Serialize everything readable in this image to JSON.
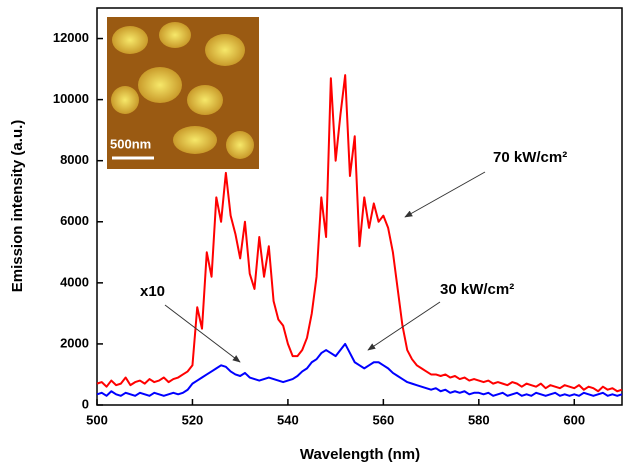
{
  "chart_data": {
    "type": "line",
    "x_label": "Wavelength (nm)",
    "y_label": "Emission intensity (a.u.)",
    "xlim": [
      500,
      610
    ],
    "ylim": [
      0,
      13000
    ],
    "xticks": [
      500,
      520,
      540,
      560,
      580,
      600
    ],
    "yticks": [
      0,
      2000,
      4000,
      6000,
      8000,
      10000,
      12000
    ],
    "x": [
      500,
      501,
      502,
      503,
      504,
      505,
      506,
      507,
      508,
      509,
      510,
      511,
      512,
      513,
      514,
      515,
      516,
      517,
      518,
      519,
      520,
      521,
      522,
      523,
      524,
      525,
      526,
      527,
      528,
      529,
      530,
      531,
      532,
      533,
      534,
      535,
      536,
      537,
      538,
      539,
      540,
      541,
      542,
      543,
      544,
      545,
      546,
      547,
      548,
      549,
      550,
      551,
      552,
      553,
      554,
      555,
      556,
      557,
      558,
      559,
      560,
      561,
      562,
      563,
      564,
      565,
      566,
      567,
      568,
      569,
      570,
      571,
      572,
      573,
      574,
      575,
      576,
      577,
      578,
      579,
      580,
      581,
      582,
      583,
      584,
      585,
      586,
      587,
      588,
      589,
      590,
      591,
      592,
      593,
      594,
      595,
      596,
      597,
      598,
      599,
      600,
      601,
      602,
      603,
      604,
      605,
      606,
      607,
      608,
      609,
      610
    ],
    "series": [
      {
        "color": "#ff0000",
        "values": [
          700,
          750,
          600,
          800,
          650,
          700,
          900,
          650,
          750,
          800,
          700,
          850,
          750,
          800,
          900,
          750,
          850,
          900,
          1000,
          1100,
          1300,
          3200,
          2500,
          5000,
          4200,
          6800,
          6000,
          7600,
          6200,
          5600,
          4800,
          6000,
          4300,
          3800,
          5500,
          4200,
          5200,
          3400,
          2800,
          2600,
          2000,
          1600,
          1600,
          1800,
          2200,
          3000,
          4200,
          6800,
          5500,
          10700,
          8000,
          9500,
          10800,
          7500,
          8800,
          5200,
          6800,
          5800,
          6600,
          6000,
          6200,
          5800,
          5000,
          3800,
          2600,
          1800,
          1500,
          1300,
          1200,
          1100,
          1000,
          1000,
          950,
          1000,
          900,
          950,
          850,
          900,
          800,
          850,
          800,
          750,
          800,
          700,
          750,
          700,
          650,
          750,
          700,
          600,
          700,
          650,
          600,
          700,
          550,
          650,
          600,
          550,
          650,
          600,
          550,
          650,
          500,
          600,
          550,
          450,
          600,
          500,
          550,
          450,
          500
        ]
      },
      {
        "color": "#0000ff",
        "values": [
          350,
          400,
          300,
          450,
          350,
          300,
          400,
          350,
          300,
          400,
          350,
          300,
          400,
          350,
          300,
          350,
          400,
          350,
          400,
          500,
          700,
          800,
          900,
          1000,
          1100,
          1200,
          1300,
          1250,
          1100,
          1000,
          950,
          1050,
          900,
          850,
          800,
          850,
          900,
          850,
          800,
          750,
          800,
          850,
          950,
          1100,
          1200,
          1400,
          1500,
          1700,
          1800,
          1700,
          1600,
          1800,
          2000,
          1700,
          1400,
          1300,
          1200,
          1300,
          1400,
          1400,
          1300,
          1200,
          1050,
          950,
          850,
          750,
          700,
          650,
          600,
          550,
          500,
          550,
          450,
          500,
          400,
          450,
          400,
          450,
          350,
          400,
          400,
          350,
          400,
          300,
          350,
          400,
          300,
          350,
          400,
          300,
          350,
          300,
          400,
          350,
          300,
          350,
          400,
          300,
          350,
          300,
          350,
          300,
          400,
          350,
          300,
          350,
          400,
          300,
          350,
          300,
          350
        ]
      }
    ],
    "annotations": [
      "x10",
      "70 kW/cm²",
      "30 kW/cm²"
    ],
    "inset_label": "500nm"
  }
}
